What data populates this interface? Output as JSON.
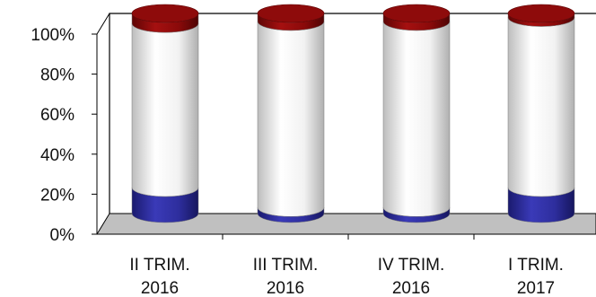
{
  "chart_data": {
    "type": "bar",
    "subtype": "stacked-percent-cylinder-3d",
    "categories": [
      [
        "II TRIM.",
        "2016"
      ],
      [
        "III TRIM.",
        "2016"
      ],
      [
        "IV TRIM.",
        "2016"
      ],
      [
        "I TRIM.",
        "2017"
      ]
    ],
    "series": [
      {
        "color": "#2e2e9e",
        "values": [
          13,
          3,
          3,
          13
        ]
      },
      {
        "color": "#f0f0f0",
        "values": [
          82,
          93,
          93,
          85
        ]
      },
      {
        "color": "#8b0a0a",
        "values": [
          5,
          4,
          4,
          2
        ]
      }
    ],
    "y_ticks": [
      "0%",
      "20%",
      "40%",
      "60%",
      "80%",
      "100%"
    ],
    "ylim": [
      0,
      100
    ],
    "grid": false,
    "legend": "none"
  }
}
